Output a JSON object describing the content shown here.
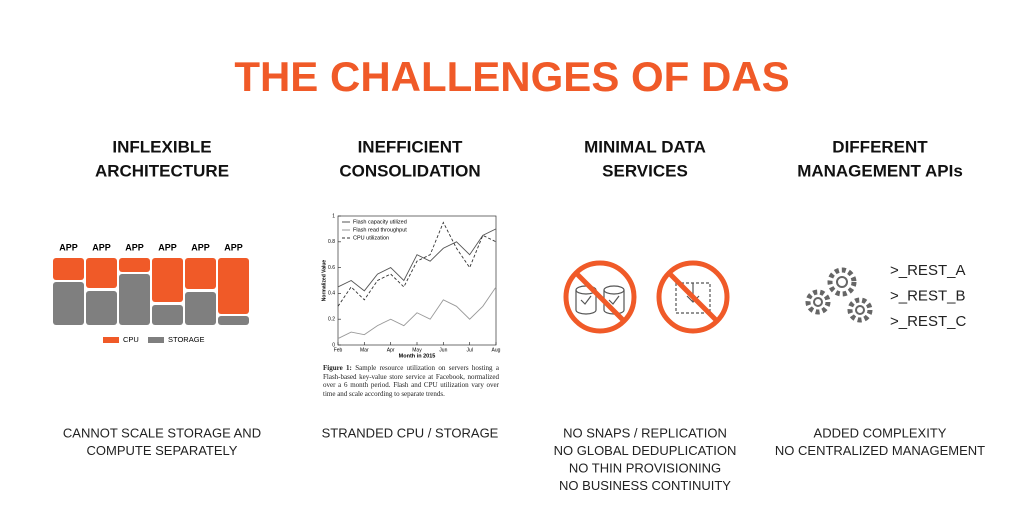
{
  "title": "THE CHALLENGES OF DAS",
  "columns": [
    {
      "heading": [
        "INFLEXIBLE",
        "ARCHITECTURE"
      ],
      "footer": [
        "CANNOT SCALE STORAGE AND",
        "COMPUTE SEPARATELY"
      ]
    },
    {
      "heading": [
        "INEFFICIENT",
        "CONSOLIDATION"
      ],
      "footer": [
        "STRANDED CPU / STORAGE"
      ]
    },
    {
      "heading": [
        "MINIMAL DATA",
        "SERVICES"
      ],
      "footer": [
        "NO SNAPS / REPLICATION",
        "NO GLOBAL DEDUPLICATION",
        "NO THIN PROVISIONING",
        "NO BUSINESS CONTINUITY"
      ]
    },
    {
      "heading": [
        "DIFFERENT",
        "MANAGEMENT APIs"
      ],
      "footer": [
        "ADDED COMPLEXITY",
        "NO CENTRALIZED MANAGEMENT"
      ]
    }
  ],
  "architecture": {
    "apps": [
      "APP",
      "APP",
      "APP",
      "APP",
      "APP",
      "APP"
    ],
    "cpu": [
      22,
      30,
      14,
      44,
      31,
      56
    ],
    "storage": [
      43,
      34,
      51,
      20,
      33,
      9
    ],
    "cpu_color": "#f05a28",
    "storage_color": "#7f7f7f",
    "legend": [
      "CPU",
      "STORAGE"
    ]
  },
  "chart_data": {
    "type": "line",
    "x": [
      0,
      0.5,
      1,
      1.5,
      2,
      2.5,
      3,
      3.5,
      4,
      4.5,
      5,
      5.5,
      6
    ],
    "xticks": [
      {
        "value": 0,
        "label": "Feb"
      },
      {
        "value": 1,
        "label": "Mar"
      },
      {
        "value": 2,
        "label": "Apr"
      },
      {
        "value": 3,
        "label": "May"
      },
      {
        "value": 4,
        "label": "Jun"
      },
      {
        "value": 5,
        "label": "Jul"
      },
      {
        "value": 6,
        "label": "Aug"
      }
    ],
    "xlim": [
      0,
      6
    ],
    "ylim": [
      0,
      1
    ],
    "yticks": [
      0,
      0.2,
      0.4,
      0.6,
      0.8,
      1
    ],
    "xlabel": "Month in 2015",
    "ylabel": "Normalized Value",
    "series": [
      {
        "name": "Flash capacity utilized",
        "color": "#555555",
        "values": [
          0.45,
          0.5,
          0.42,
          0.55,
          0.6,
          0.5,
          0.7,
          0.65,
          0.75,
          0.8,
          0.7,
          0.85,
          0.9
        ]
      },
      {
        "name": "Flash read throughput",
        "color": "#999999",
        "values": [
          0.05,
          0.1,
          0.08,
          0.15,
          0.2,
          0.15,
          0.25,
          0.2,
          0.35,
          0.3,
          0.2,
          0.3,
          0.45
        ]
      },
      {
        "name": "CPU utilization",
        "color": "#333333",
        "dash": "3,2",
        "values": [
          0.3,
          0.45,
          0.35,
          0.5,
          0.55,
          0.45,
          0.65,
          0.7,
          0.95,
          0.75,
          0.6,
          0.85,
          0.8
        ]
      }
    ],
    "caption": {
      "label": "Figure 1:",
      "text": "Sample resource utilization on servers hosting a Flash-based key-value store service at Facebook, normalized over a 6 month period. Flash and CPU utilization vary over time and scale according to separate trends."
    }
  },
  "apis": [
    ">_REST_A",
    ">_REST_B",
    ">_REST_C"
  ]
}
